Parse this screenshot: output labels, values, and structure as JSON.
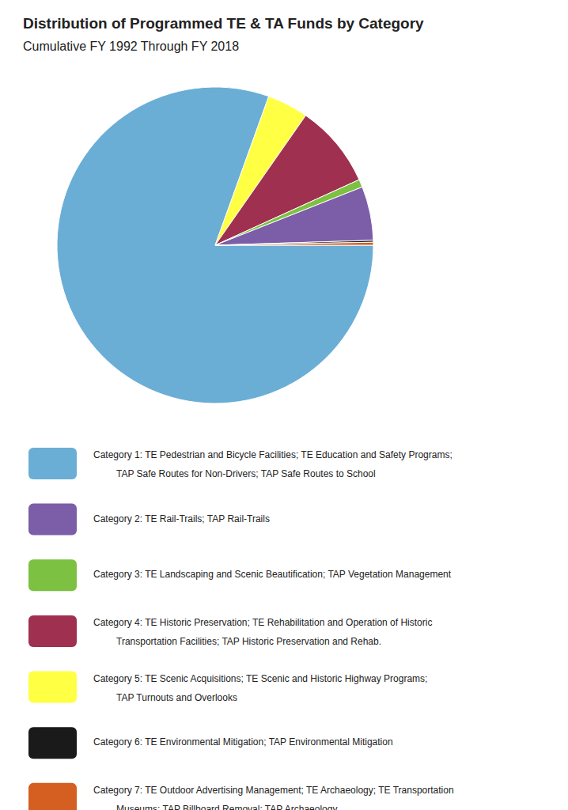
{
  "chart_data": {
    "type": "pie",
    "title": "Distribution of Programmed TE & TA Funds by Category",
    "subtitle": "Cumulative FY 1992 Through FY 2018",
    "values": [
      80.5,
      4.2,
      8.5,
      0.8,
      5.5,
      0.2,
      0.3
    ],
    "colors": [
      "#6aaed6",
      "#ffff44",
      "#a03050",
      "#7dc142",
      "#7b5ea7",
      "#1a1a1a",
      "#d45f20"
    ],
    "legend_entries": [
      {
        "color": "#6aaed6",
        "lines": [
          "Category 1: TE Pedestrian and Bicycle Facilities; TE Education and Safety Programs;",
          "TAP Safe Routes for Non-Drivers; TAP Safe Routes to School"
        ]
      },
      {
        "color": "#7b5ea7",
        "lines": [
          "Category 2: TE Rail-Trails; TAP Rail-Trails"
        ]
      },
      {
        "color": "#7dc142",
        "lines": [
          "Category 3: TE Landscaping and Scenic Beautification; TAP Vegetation Management"
        ]
      },
      {
        "color": "#a03050",
        "lines": [
          "Category 4: TE Historic Preservation; TE Rehabilitation and Operation of Historic",
          "Transportation Facilities; TAP Historic Preservation and Rehab."
        ]
      },
      {
        "color": "#ffff44",
        "lines": [
          "Category 5: TE Scenic Acquisitions; TE Scenic and Historic Highway Programs;",
          "TAP Turnouts and Overlooks"
        ]
      },
      {
        "color": "#1a1a1a",
        "lines": [
          "Category 6: TE Environmental Mitigation; TAP Environmental Mitigation"
        ]
      },
      {
        "color": "#d45f20",
        "lines": [
          "Category 7: TE Outdoor Advertising Management; TE Archaeology; TE Transportation",
          "Museums; TAP Billboard Removal; TAP Archaeology"
        ]
      }
    ]
  }
}
